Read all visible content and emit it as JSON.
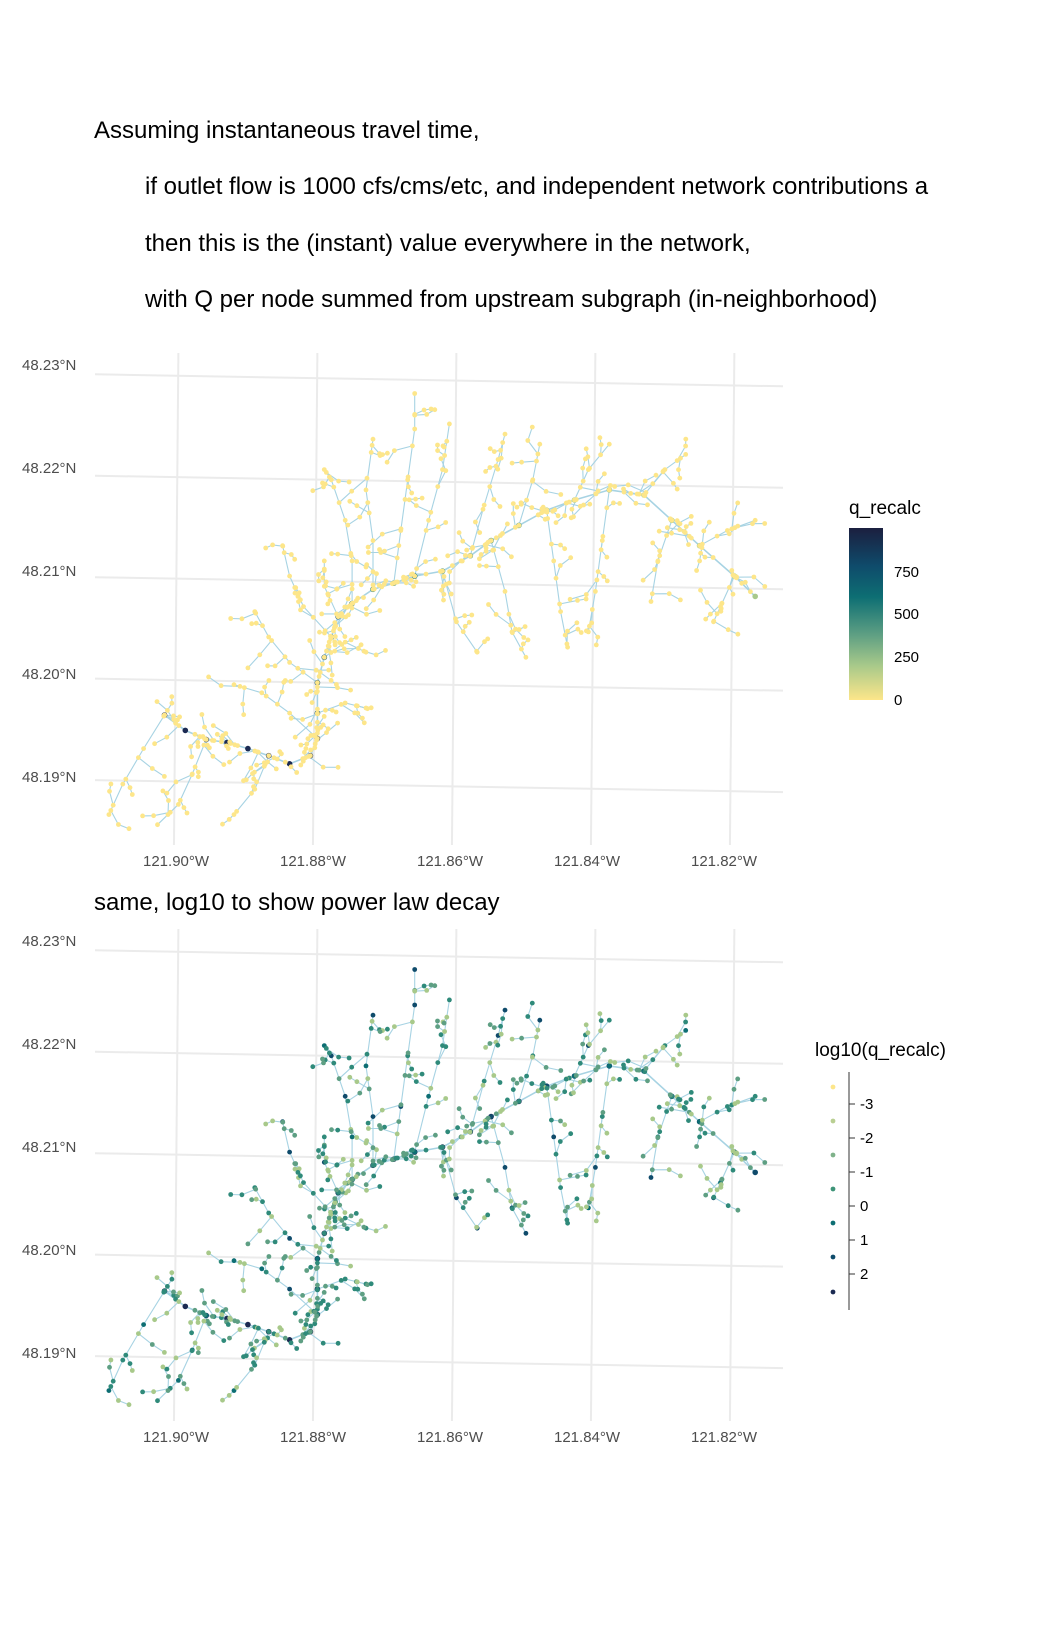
{
  "header": {
    "lines": [
      "Assuming instantaneous travel time,",
      "if outlet flow is 1000 cfs/cms/etc, and independent network contributions a",
      "then this is the (instant) value everywhere in the network,",
      "with Q per node summed from upstream subgraph (in-neighborhood)"
    ]
  },
  "panels": [
    {
      "subtitle": "",
      "legend_title": "q_recalc",
      "legend_type": "continuous",
      "legend_labels": [
        "750",
        "500",
        "250",
        "0"
      ],
      "legend_values": [
        750,
        500,
        250,
        0
      ],
      "color_range": [
        0,
        1000
      ]
    },
    {
      "subtitle": "same, log10 to show power law decay",
      "legend_title": "log10(q_recalc)",
      "legend_type": "binned",
      "legend_labels": [
        "-3",
        "-2",
        "-1",
        "0",
        "1",
        "2"
      ],
      "legend_values": [
        -3,
        -2,
        -1,
        0,
        1,
        2
      ],
      "color_range": [
        -3.5,
        3
      ]
    }
  ],
  "axes": {
    "x_ticks": [
      "121.90°W",
      "121.88°W",
      "121.86°W",
      "121.84°W",
      "121.82°W"
    ],
    "x_values": [
      -121.9,
      -121.88,
      -121.86,
      -121.84,
      -121.82
    ],
    "y_ticks": [
      "48.23°N",
      "48.22°N",
      "48.21°N",
      "48.20°N",
      "48.19°N"
    ],
    "y_values": [
      48.23,
      48.22,
      48.21,
      48.2,
      48.19
    ],
    "xlim": [
      -121.912,
      -121.813
    ],
    "ylim": [
      48.184,
      48.232
    ]
  },
  "colors": {
    "viridis_low": "#fde725",
    "stream": "#a7d3e3",
    "grid": "#ebebeb",
    "palette": [
      "#fde68a",
      "#a8c98a",
      "#5e9f83",
      "#2f8a7a",
      "#0d6e73",
      "#0f4b6b",
      "#1b2a52"
    ]
  },
  "map_data": {
    "main_channel": [
      [
        -121.902,
        48.1968
      ],
      [
        -121.899,
        48.1953
      ],
      [
        -121.896,
        48.1944
      ],
      [
        -121.893,
        48.1941
      ],
      [
        -121.89,
        48.1935
      ],
      [
        -121.887,
        48.1928
      ],
      [
        -121.884,
        48.192
      ],
      [
        -121.881,
        48.1928
      ],
      [
        -121.88,
        48.1945
      ],
      [
        -121.88,
        48.197
      ],
      [
        -121.88,
        48.2
      ],
      [
        -121.879,
        48.2025
      ],
      [
        -121.878,
        48.2045
      ],
      [
        -121.877,
        48.2065
      ],
      [
        -121.875,
        48.2078
      ],
      [
        -121.872,
        48.2092
      ],
      [
        -121.869,
        48.2098
      ],
      [
        -121.866,
        48.2105
      ],
      [
        -121.862,
        48.211
      ],
      [
        -121.858,
        48.2125
      ],
      [
        -121.855,
        48.214
      ],
      [
        -121.851,
        48.2155
      ],
      [
        -121.847,
        48.217
      ],
      [
        -121.843,
        48.218
      ],
      [
        -121.838,
        48.219
      ],
      [
        -121.833,
        48.2185
      ],
      [
        -121.829,
        48.216
      ],
      [
        -121.825,
        48.2135
      ],
      [
        -121.82,
        48.2105
      ],
      [
        -121.817,
        48.2085
      ]
    ],
    "tributaries": [
      [
        [
          -121.902,
          48.1968
        ],
        [
          -121.905,
          48.1935
        ],
        [
          -121.908,
          48.19
        ],
        [
          -121.91,
          48.187
        ]
      ],
      [
        [
          -121.896,
          48.1944
        ],
        [
          -121.898,
          48.191
        ],
        [
          -121.9,
          48.188
        ],
        [
          -121.903,
          48.186
        ]
      ],
      [
        [
          -121.887,
          48.1928
        ],
        [
          -121.889,
          48.1895
        ],
        [
          -121.892,
          48.187
        ]
      ],
      [
        [
          -121.88,
          48.1945
        ],
        [
          -121.884,
          48.197
        ],
        [
          -121.888,
          48.199
        ],
        [
          -121.892,
          48.1998
        ]
      ],
      [
        [
          -121.88,
          48.197
        ],
        [
          -121.876,
          48.198
        ],
        [
          -121.873,
          48.1975
        ]
      ],
      [
        [
          -121.88,
          48.2
        ],
        [
          -121.884,
          48.202
        ],
        [
          -121.887,
          48.2045
        ],
        [
          -121.889,
          48.207
        ]
      ],
      [
        [
          -121.879,
          48.2025
        ],
        [
          -121.876,
          48.204
        ],
        [
          -121.873,
          48.203
        ]
      ],
      [
        [
          -121.878,
          48.2045
        ],
        [
          -121.882,
          48.2075
        ],
        [
          -121.884,
          48.2105
        ],
        [
          -121.885,
          48.2135
        ]
      ],
      [
        [
          -121.877,
          48.2065
        ],
        [
          -121.879,
          48.2095
        ],
        [
          -121.879,
          48.212
        ]
      ],
      [
        [
          -121.875,
          48.2078
        ],
        [
          -121.875,
          48.212
        ],
        [
          -121.876,
          48.216
        ],
        [
          -121.878,
          48.22
        ],
        [
          -121.879,
          48.221
        ]
      ],
      [
        [
          -121.872,
          48.2092
        ],
        [
          -121.872,
          48.214
        ],
        [
          -121.873,
          48.219
        ],
        [
          -121.872,
          48.224
        ]
      ],
      [
        [
          -121.869,
          48.2098
        ],
        [
          -121.868,
          48.215
        ],
        [
          -121.867,
          48.22
        ],
        [
          -121.866,
          48.225
        ],
        [
          -121.866,
          48.2285
        ]
      ],
      [
        [
          -121.866,
          48.2105
        ],
        [
          -121.864,
          48.216
        ],
        [
          -121.862,
          48.221
        ],
        [
          -121.861,
          48.2255
        ]
      ],
      [
        [
          -121.862,
          48.211
        ],
        [
          -121.86,
          48.206
        ],
        [
          -121.857,
          48.203
        ]
      ],
      [
        [
          -121.858,
          48.2125
        ],
        [
          -121.856,
          48.2175
        ],
        [
          -121.854,
          48.222
        ],
        [
          -121.853,
          48.2245
        ]
      ],
      [
        [
          -121.855,
          48.214
        ],
        [
          -121.853,
          48.209
        ],
        [
          -121.852,
          48.205
        ],
        [
          -121.85,
          48.2025
        ]
      ],
      [
        [
          -121.851,
          48.2155
        ],
        [
          -121.849,
          48.22
        ],
        [
          -121.848,
          48.2235
        ]
      ],
      [
        [
          -121.847,
          48.217
        ],
        [
          -121.846,
          48.212
        ],
        [
          -121.845,
          48.207
        ],
        [
          -121.844,
          48.2035
        ]
      ],
      [
        [
          -121.843,
          48.218
        ],
        [
          -121.841,
          48.221
        ],
        [
          -121.838,
          48.2235
        ]
      ],
      [
        [
          -121.838,
          48.219
        ],
        [
          -121.839,
          48.214
        ],
        [
          -121.84,
          48.209
        ],
        [
          -121.841,
          48.205
        ]
      ],
      [
        [
          -121.833,
          48.2185
        ],
        [
          -121.83,
          48.221
        ],
        [
          -121.827,
          48.2225
        ]
      ],
      [
        [
          -121.829,
          48.216
        ],
        [
          -121.831,
          48.212
        ],
        [
          -121.832,
          48.208
        ]
      ],
      [
        [
          -121.825,
          48.2135
        ],
        [
          -121.821,
          48.215
        ],
        [
          -121.817,
          48.216
        ]
      ],
      [
        [
          -121.82,
          48.2105
        ],
        [
          -121.822,
          48.2075
        ],
        [
          -121.823,
          48.206
        ]
      ]
    ]
  }
}
